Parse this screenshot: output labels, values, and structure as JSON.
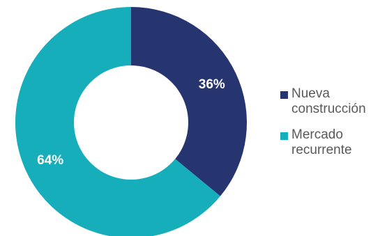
{
  "chart_data": {
    "type": "pie",
    "donut": true,
    "categories": [
      "Nueva\nconstrucción",
      "Mercado\nrecurrente"
    ],
    "values": [
      36,
      64
    ],
    "data_labels": [
      "36%",
      "64%"
    ],
    "colors": [
      "#263470",
      "#17AEBB"
    ],
    "legend_position": "right",
    "title": ""
  }
}
